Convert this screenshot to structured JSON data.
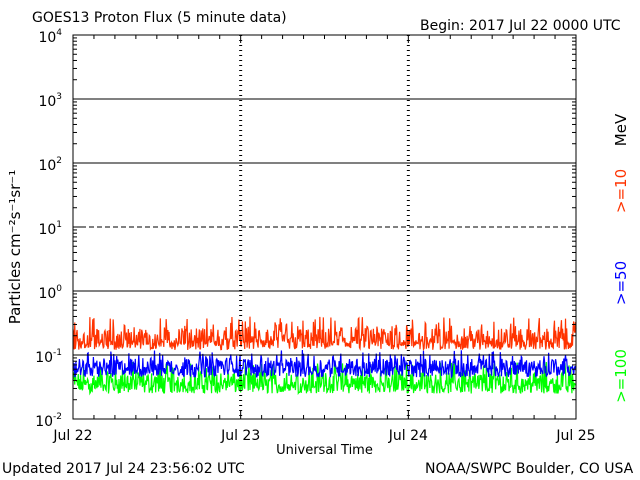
{
  "header": {
    "title": "GOES13 Proton Flux (5 minute data)",
    "begin": "Begin: 2017 Jul 22 0000 UTC"
  },
  "footer": {
    "updated": "Updated 2017 Jul 24 23:56:02 UTC",
    "credit": "NOAA/SWPC Boulder, CO USA"
  },
  "colors": {
    "ge10": "#ff3300",
    "ge50": "#0000ff",
    "ge100": "#00ff00",
    "axis": "#000000"
  },
  "chart_data": {
    "type": "line",
    "title": "GOES13 Proton Flux (5 minute data)",
    "xlabel": "Universal Time",
    "ylabel": "Particles cm⁻²s⁻¹sr⁻¹",
    "y_scale": "log",
    "ylim": [
      0.01,
      10000
    ],
    "xlim": [
      "2017-07-22 00:00",
      "2017-07-25 00:00"
    ],
    "x_ticks": [
      "Jul 22",
      "Jul 23",
      "Jul 24",
      "Jul 25"
    ],
    "y_ticks": [
      {
        "base": "10",
        "exp": "-2",
        "value": 0.01
      },
      {
        "base": "10",
        "exp": "-1",
        "value": 0.1
      },
      {
        "base": "10",
        "exp": "0",
        "value": 1
      },
      {
        "base": "10",
        "exp": "1",
        "value": 10
      },
      {
        "base": "10",
        "exp": "2",
        "value": 100
      },
      {
        "base": "10",
        "exp": "3",
        "value": 1000
      },
      {
        "base": "10",
        "exp": "4",
        "value": 10000
      }
    ],
    "threshold_levels": [
      {
        "value": 1000,
        "style": "solid"
      },
      {
        "value": 100,
        "style": "solid"
      },
      {
        "value": 10,
        "style": "dashed"
      },
      {
        "value": 1,
        "style": "solid"
      },
      {
        "value": 0.1,
        "style": "solid"
      }
    ],
    "right_axis_label": "MeV",
    "grid": "vertical dashed at day boundaries",
    "series": [
      {
        "name": ">=10",
        "color": "#ff3300",
        "typical_flux": 0.17,
        "flux_range": [
          0.12,
          0.4
        ]
      },
      {
        "name": ">=50",
        "color": "#0000ff",
        "typical_flux": 0.065,
        "flux_range": [
          0.045,
          0.12
        ]
      },
      {
        "name": ">=100",
        "color": "#00ff00",
        "typical_flux": 0.036,
        "flux_range": [
          0.025,
          0.08
        ]
      }
    ]
  }
}
